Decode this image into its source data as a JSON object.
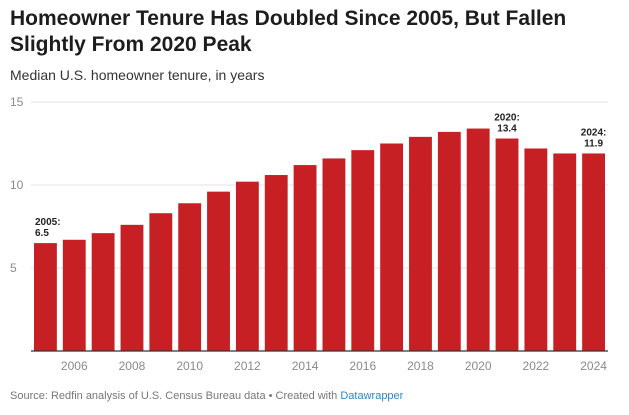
{
  "header": {
    "title": "Homeowner Tenure Has Doubled Since 2005, But Fallen Slightly From 2020 Peak",
    "subtitle": "Median U.S. homeowner tenure, in years"
  },
  "footer": {
    "source": "Source: Redfin analysis of U.S. Census Bureau data • Created with ",
    "link": "Datawrapper"
  },
  "colors": {
    "bar": "#c61f24",
    "grid": "#e3e3e3",
    "axis": "#333333"
  },
  "chart_data": {
    "type": "bar",
    "categories": [
      "2005",
      "2006",
      "2007",
      "2008",
      "2009",
      "2010",
      "2011",
      "2012",
      "2013",
      "2014",
      "2015",
      "2016",
      "2017",
      "2018",
      "2019",
      "2020",
      "2021",
      "2022",
      "2023",
      "2024"
    ],
    "values": [
      6.5,
      6.7,
      7.1,
      7.6,
      8.3,
      8.9,
      9.6,
      10.2,
      10.6,
      11.2,
      11.6,
      12.1,
      12.5,
      12.9,
      13.2,
      13.4,
      12.8,
      12.2,
      11.9,
      11.9
    ],
    "x_tick_labels": [
      "2006",
      "2008",
      "2010",
      "2012",
      "2014",
      "2016",
      "2018",
      "2020",
      "2022",
      "2024"
    ],
    "y_ticks": [
      5,
      10,
      15
    ],
    "ylim": [
      0,
      15
    ],
    "grid": true,
    "xlabel": "",
    "ylabel": "",
    "annotations": [
      {
        "category": "2005",
        "lines": [
          "2005:",
          "6.5"
        ]
      },
      {
        "category": "2021",
        "lines": [
          "2020:",
          "13.4"
        ]
      },
      {
        "category": "2024",
        "lines": [
          "2024:",
          "11.9"
        ]
      }
    ]
  }
}
